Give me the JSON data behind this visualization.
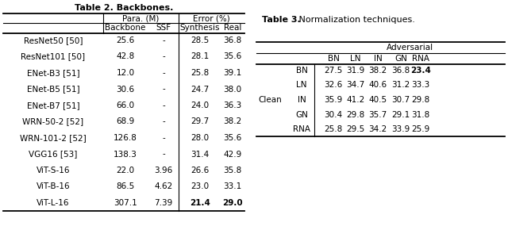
{
  "table2_title": "Table 2. Backbones.",
  "table2_rows": [
    [
      "ResNet50 [50]",
      "25.6",
      "-",
      "28.5",
      "36.8"
    ],
    [
      "ResNet101 [50]",
      "42.8",
      "-",
      "28.1",
      "35.6"
    ],
    [
      "ENet-B3 [51]",
      "12.0",
      "-",
      "25.8",
      "39.1"
    ],
    [
      "ENet-B5 [51]",
      "30.6",
      "-",
      "24.7",
      "38.0"
    ],
    [
      "ENet-B7 [51]",
      "66.0",
      "-",
      "24.0",
      "36.3"
    ],
    [
      "WRN-50-2 [52]",
      "68.9",
      "-",
      "29.7",
      "38.2"
    ],
    [
      "WRN-101-2 [52]",
      "126.8",
      "-",
      "28.0",
      "35.6"
    ],
    [
      "VGG16 [53]",
      "138.3",
      "-",
      "31.4",
      "42.9"
    ],
    [
      "ViT-S-16",
      "22.0",
      "3.96",
      "26.6",
      "35.8"
    ],
    [
      "ViT-B-16",
      "86.5",
      "4.62",
      "23.0",
      "33.1"
    ],
    [
      "ViT-L-16",
      "307.1",
      "7.39",
      "21.4",
      "29.0"
    ]
  ],
  "table2_bold_row": 10,
  "table2_bold_cols": [
    3,
    4
  ],
  "table3_title_bold": "Table 3.",
  "table3_title_rest": " Normalization techniques.",
  "table3_col_header": "Adversarial",
  "table3_norm_cols": [
    "BN",
    "LN",
    "IN",
    "GN",
    "RNA"
  ],
  "table3_row_label": "Clean",
  "table3_rows": [
    [
      "BN",
      "27.5",
      "31.9",
      "38.2",
      "36.8",
      "23.4"
    ],
    [
      "LN",
      "32.6",
      "34.7",
      "40.6",
      "31.2",
      "33.3"
    ],
    [
      "IN",
      "35.9",
      "41.2",
      "40.5",
      "30.7",
      "29.8"
    ],
    [
      "GN",
      "30.4",
      "29.8",
      "35.7",
      "29.1",
      "31.8"
    ],
    [
      "RNA",
      "25.8",
      "29.5",
      "34.2",
      "33.9",
      "25.9"
    ]
  ],
  "table3_bold_row": 0,
  "table3_bold_col": 5,
  "bg_color": "#ffffff"
}
